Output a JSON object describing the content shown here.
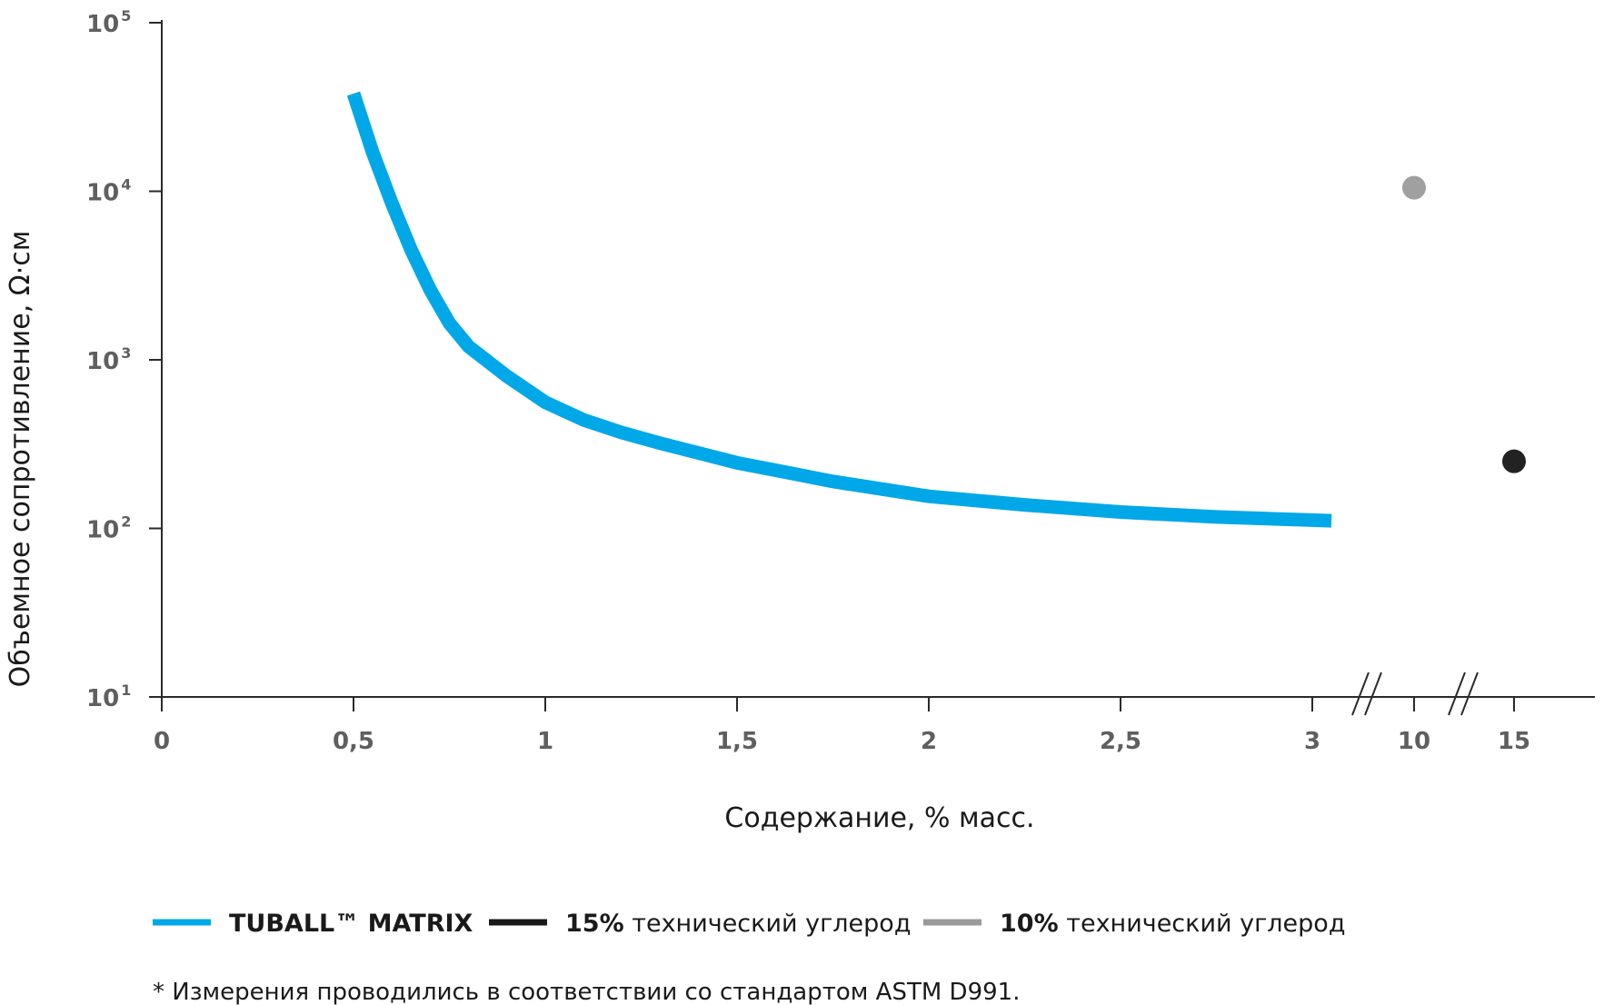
{
  "chart_data": {
    "type": "line",
    "ylabel": "Объемное сопротивление, Ω·см",
    "xlabel": "Содержание, % масс.",
    "yscale": "log",
    "ylim": [
      10,
      100000
    ],
    "yticks": [
      {
        "value": 10,
        "base": "10",
        "exp": "1"
      },
      {
        "value": 100,
        "base": "10",
        "exp": "2"
      },
      {
        "value": 1000,
        "base": "10",
        "exp": "3"
      },
      {
        "value": 10000,
        "base": "10",
        "exp": "4"
      },
      {
        "value": 100000,
        "base": "10",
        "exp": "5"
      }
    ],
    "xticks": [
      {
        "value": 0,
        "label": "0"
      },
      {
        "value": 0.5,
        "label": "0,5"
      },
      {
        "value": 1,
        "label": "1"
      },
      {
        "value": 1.5,
        "label": "1,5"
      },
      {
        "value": 2,
        "label": "2"
      },
      {
        "value": 2.5,
        "label": "2,5"
      },
      {
        "value": 3,
        "label": "3"
      },
      {
        "value": 10,
        "label": "10"
      },
      {
        "value": 15,
        "label": "15"
      }
    ],
    "axis_breaks": [
      {
        "between": [
          3,
          10
        ]
      },
      {
        "between": [
          10,
          15
        ]
      }
    ],
    "series": [
      {
        "name": "TUBALL™ MATRIX",
        "type": "line",
        "color": "#00a8e8",
        "x": [
          0.5,
          0.55,
          0.6,
          0.65,
          0.7,
          0.75,
          0.8,
          0.9,
          1.0,
          1.1,
          1.2,
          1.3,
          1.5,
          1.75,
          2.0,
          2.25,
          2.5,
          2.75,
          3.0,
          3.05
        ],
        "y": [
          38000,
          17000,
          8500,
          4500,
          2600,
          1650,
          1200,
          800,
          560,
          440,
          370,
          320,
          245,
          190,
          155,
          138,
          125,
          117,
          112,
          111
        ]
      },
      {
        "name": "15% технический углерод",
        "type": "scatter",
        "color": "#222222",
        "x": [
          15
        ],
        "y": [
          250
        ]
      },
      {
        "name": "10% технический углерод",
        "type": "scatter",
        "color": "#a0a0a0",
        "x": [
          10
        ],
        "y": [
          10500
        ]
      }
    ],
    "legend": {
      "placement": "bottom",
      "items": [
        {
          "bold": "TUBALL™ MATRIX",
          "rest": "",
          "color": "#00a8e8"
        },
        {
          "bold": "15%",
          "rest": " технический углерод",
          "color": "#1a1a1a"
        },
        {
          "bold": "10%",
          "rest": " технический углерод",
          "color": "#9a9a9a"
        }
      ]
    },
    "grid": false
  },
  "footnote": "* Измерения проводились в соответствии со стандартом ASTM D991."
}
